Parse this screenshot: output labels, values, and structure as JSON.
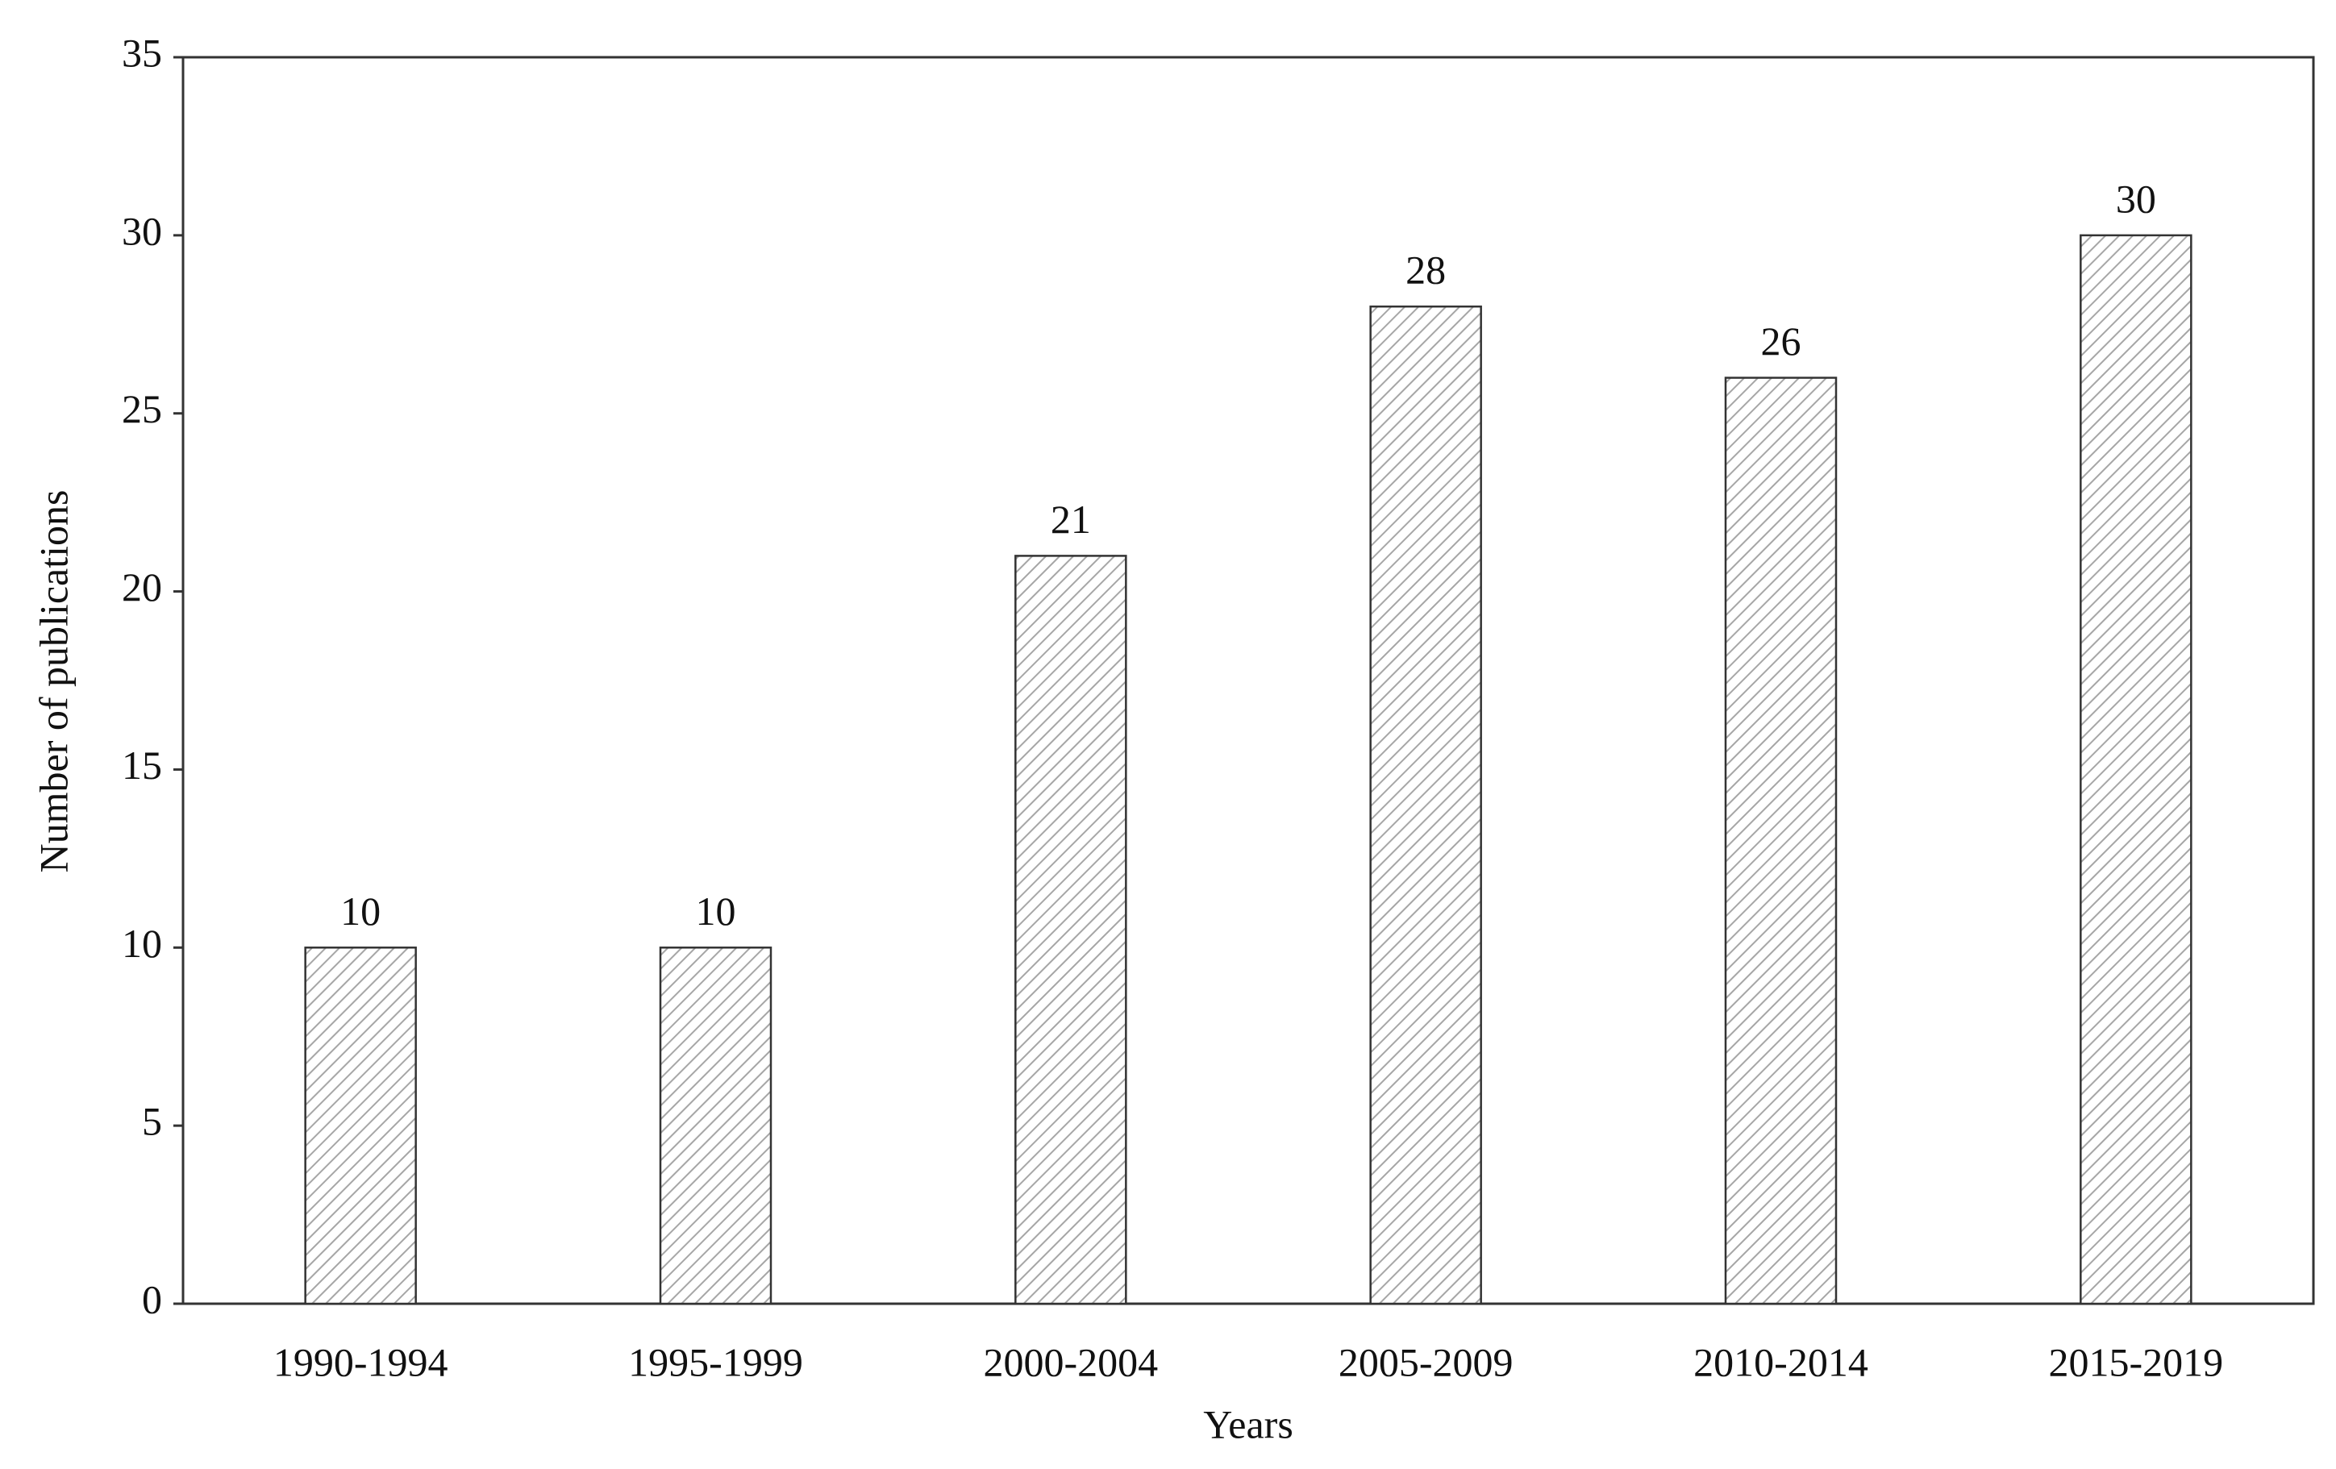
{
  "chart_data": {
    "type": "bar",
    "x_label": "Years",
    "y_label": "Number of publications",
    "categories": [
      "1990-1994",
      "1995-1999",
      "2000-2004",
      "2005-2009",
      "2010-2014",
      "2015-2019"
    ],
    "values": [
      10,
      10,
      21,
      28,
      26,
      30
    ],
    "color": "#a6a6a6",
    "ylim": [
      0,
      35
    ],
    "yticks": [
      0,
      5,
      10,
      15,
      20,
      25,
      30,
      35
    ],
    "grid": false
  }
}
